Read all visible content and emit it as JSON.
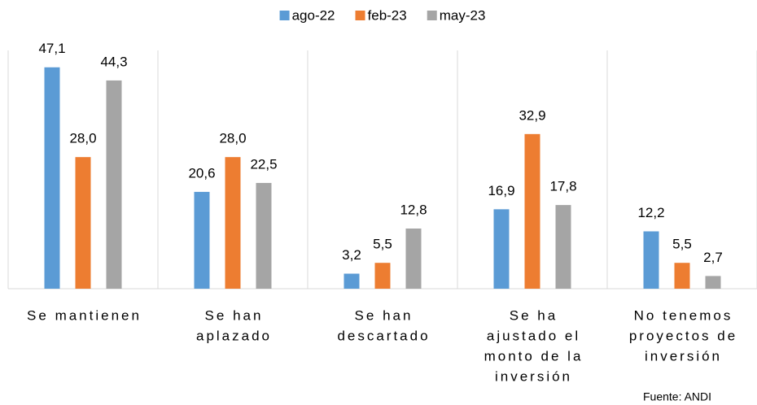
{
  "chart_data": {
    "type": "bar",
    "categories": [
      [
        "Se mantienen"
      ],
      [
        "Se han",
        "aplazado"
      ],
      [
        "Se han",
        "descartado"
      ],
      [
        "Se ha",
        "ajustado el",
        "monto de la",
        "inversión"
      ],
      [
        "No tenemos",
        "proyectos de",
        "inversión"
      ]
    ],
    "series": [
      {
        "name": "ago-22",
        "color": "#5b9bd5",
        "values": [
          47.1,
          20.6,
          3.2,
          16.9,
          12.2
        ],
        "value_labels": [
          "47,1",
          "20,6",
          "3,2",
          "16,9",
          "12,2"
        ]
      },
      {
        "name": "feb-23",
        "color": "#ed7d31",
        "values": [
          28.0,
          28.0,
          5.5,
          32.9,
          5.5
        ],
        "value_labels": [
          "28,0",
          "28,0",
          "5,5",
          "32,9",
          "5,5"
        ]
      },
      {
        "name": "may-23",
        "color": "#a5a5a5",
        "values": [
          44.3,
          22.5,
          12.8,
          17.8,
          2.7
        ],
        "value_labels": [
          "44,3",
          "22,5",
          "12,8",
          "17,8",
          "2,7"
        ]
      }
    ],
    "legend": "top",
    "source": "Fuente: ANDI"
  }
}
